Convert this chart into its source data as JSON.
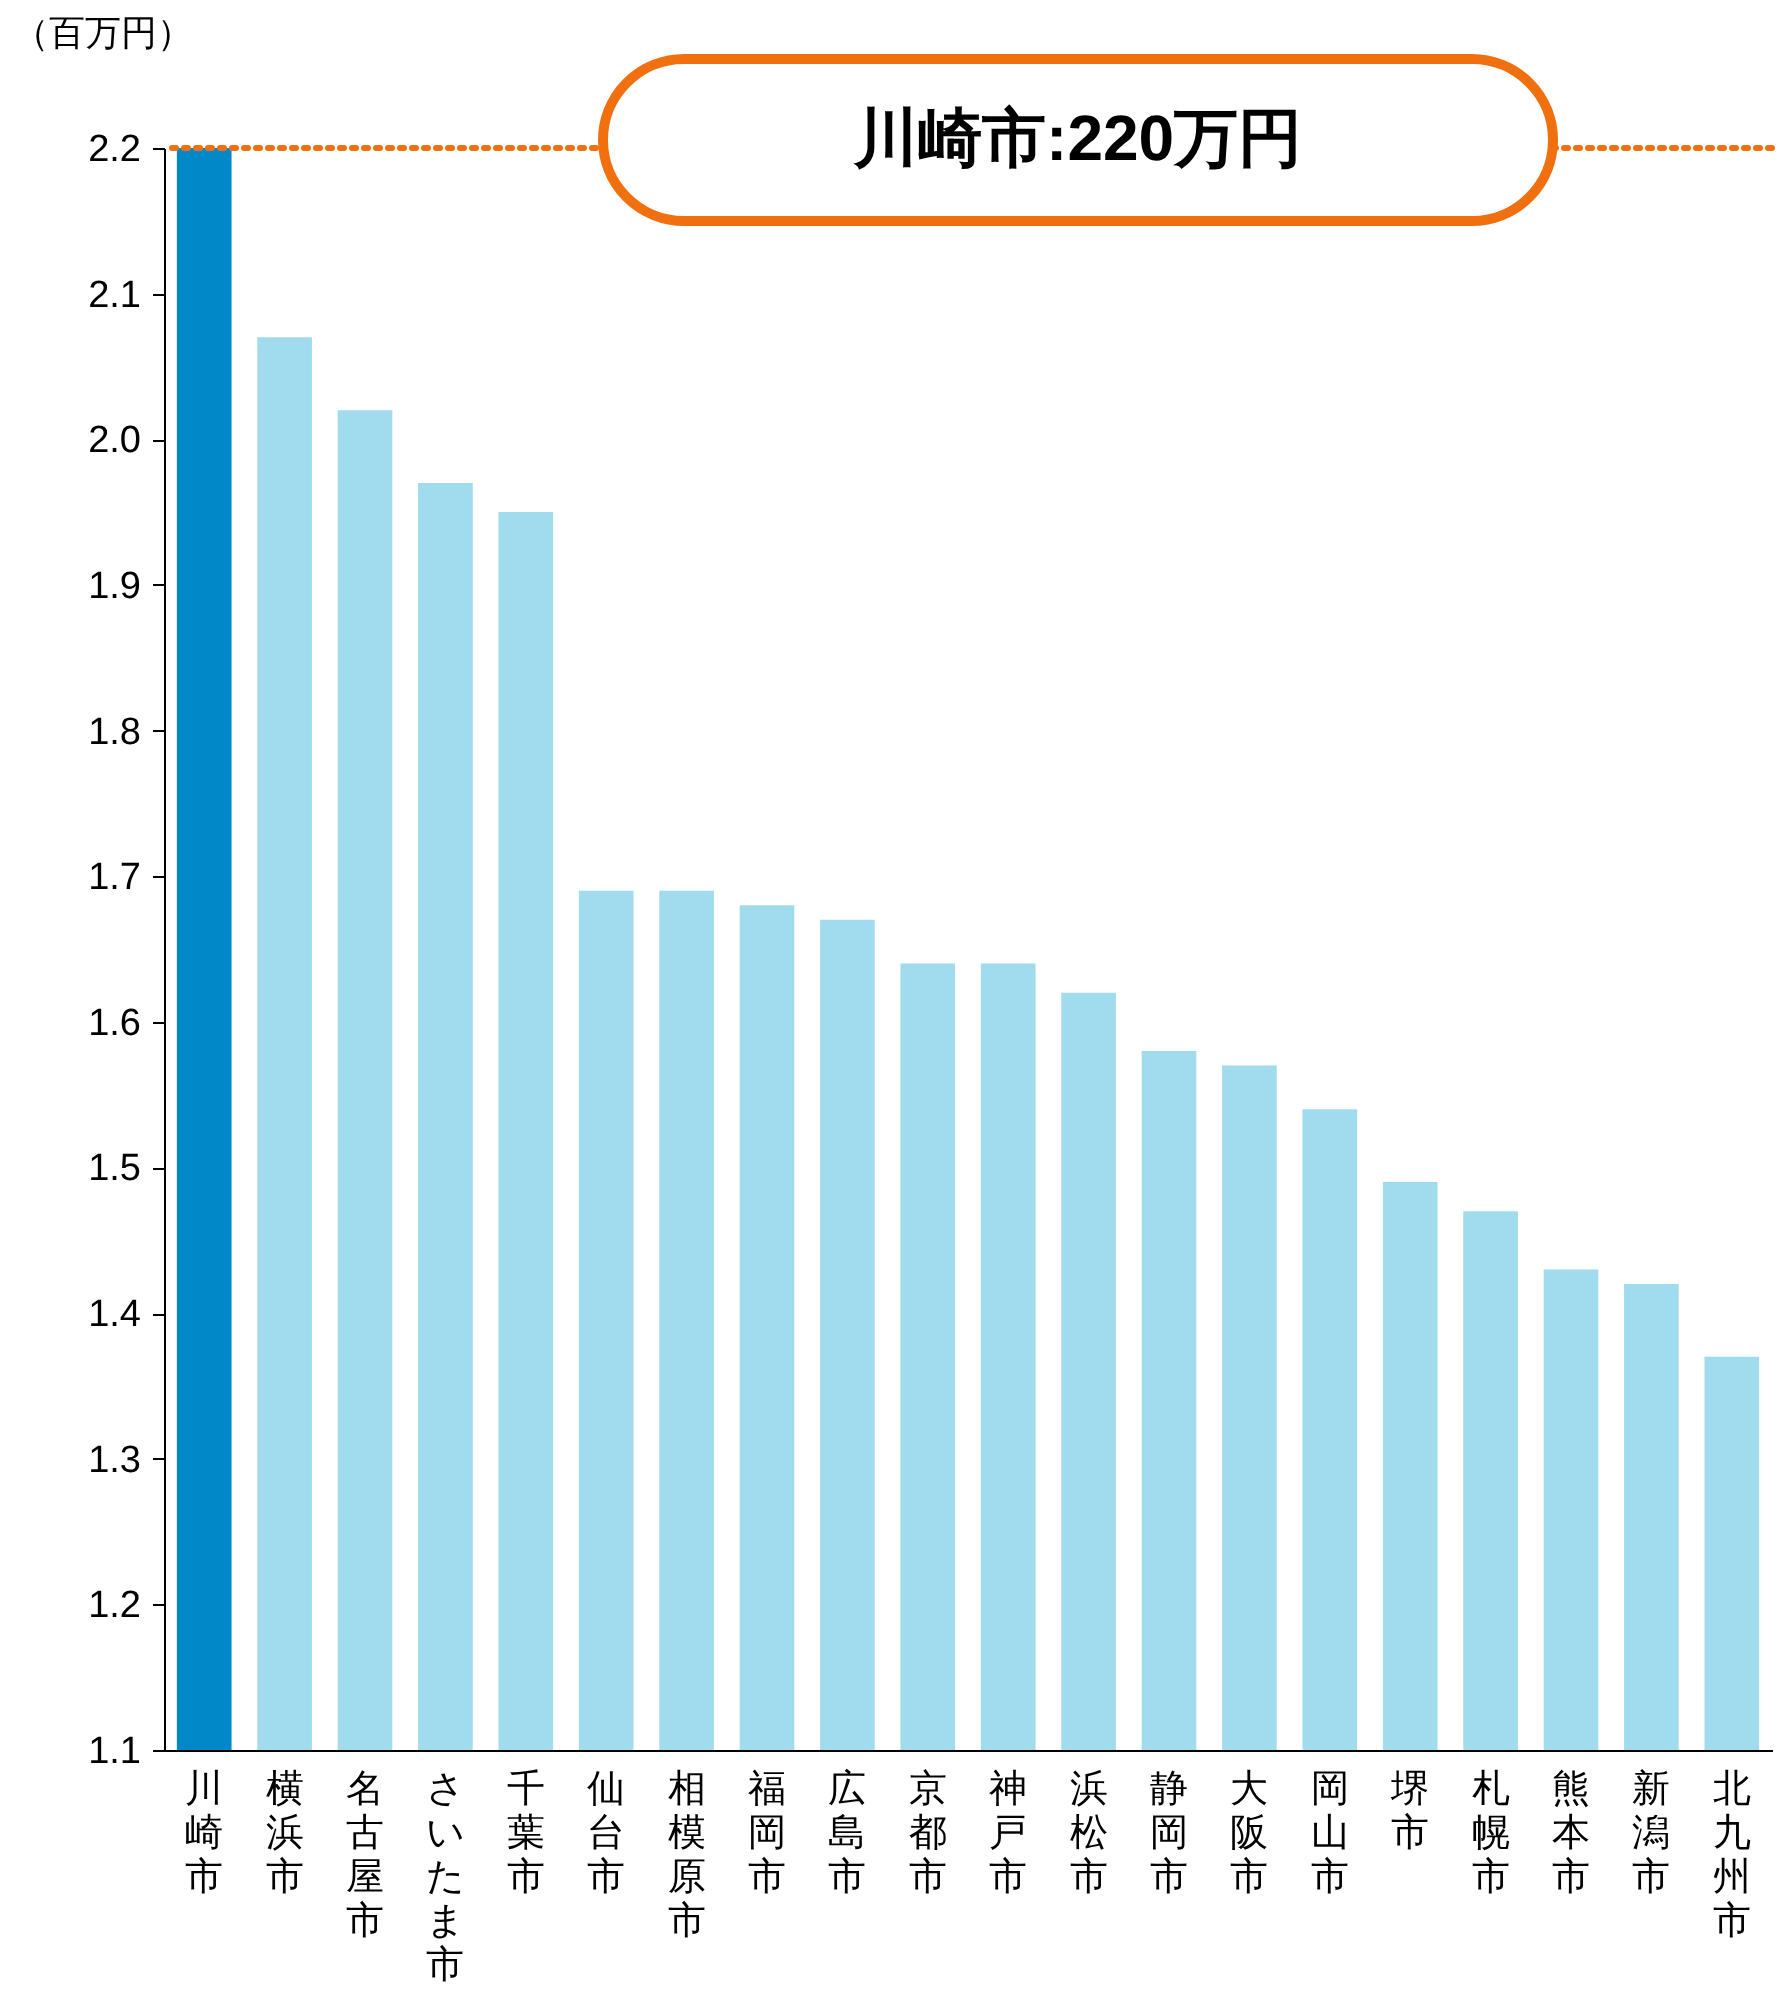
{
  "chart_data": {
    "type": "bar",
    "ylabel": "（百万円）",
    "categories": [
      "川崎市",
      "横浜市",
      "名古屋市",
      "さいたま市",
      "千葉市",
      "仙台市",
      "相模原市",
      "福岡市",
      "広島市",
      "京都市",
      "神戸市",
      "浜松市",
      "静岡市",
      "大阪市",
      "岡山市",
      "堺市",
      "札幌市",
      "熊本市",
      "新潟市",
      "北九州市"
    ],
    "values": [
      2.2,
      2.07,
      2.02,
      1.97,
      1.95,
      1.69,
      1.69,
      1.68,
      1.67,
      1.64,
      1.64,
      1.62,
      1.58,
      1.57,
      1.54,
      1.49,
      1.47,
      1.43,
      1.42,
      1.37
    ],
    "colors": [
      "#0088c8",
      "#a0dcee",
      "#a0dcee",
      "#a0dcee",
      "#a0dcee",
      "#a0dcee",
      "#a0dcee",
      "#a0dcee",
      "#a0dcee",
      "#a0dcee",
      "#a0dcee",
      "#a0dcee",
      "#a0dcee",
      "#a0dcee",
      "#a0dcee",
      "#a0dcee",
      "#a0dcee",
      "#a0dcee",
      "#a0dcee",
      "#a0dcee"
    ],
    "ylim": [
      1.1,
      2.2
    ],
    "yticks": [
      1.1,
      1.2,
      1.3,
      1.4,
      1.5,
      1.6,
      1.7,
      1.8,
      1.9,
      {
        "value": 2,
        "label": "2.0"
      },
      2.1,
      2.2
    ],
    "ref_lines": [
      {
        "axis": "y",
        "value": 2.2,
        "label": "川崎市:220万円",
        "color": "#f07010",
        "line_style": "dotted"
      }
    ],
    "grid": false
  }
}
